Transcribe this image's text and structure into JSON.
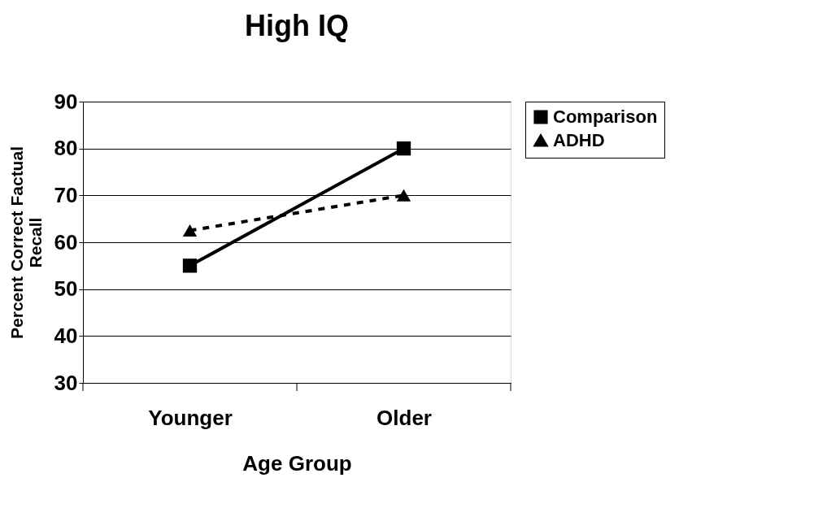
{
  "chart_data": {
    "type": "line",
    "title": "High IQ",
    "xlabel": "Age Group",
    "ylabel": "Percent Correct Factual Recall",
    "categories": [
      "Younger",
      "Older"
    ],
    "series": [
      {
        "name": "Comparison",
        "color": "#000000",
        "values": [
          55,
          80
        ],
        "marker": "square",
        "line_style": "solid"
      },
      {
        "name": "ADHD",
        "color": "#000000",
        "values": [
          62.5,
          70
        ],
        "marker": "triangle",
        "line_style": "dashed"
      }
    ],
    "ylim": [
      30,
      90
    ],
    "yticks": [
      30,
      40,
      50,
      60,
      70,
      80,
      90
    ],
    "grid": "y",
    "legend": "right"
  }
}
